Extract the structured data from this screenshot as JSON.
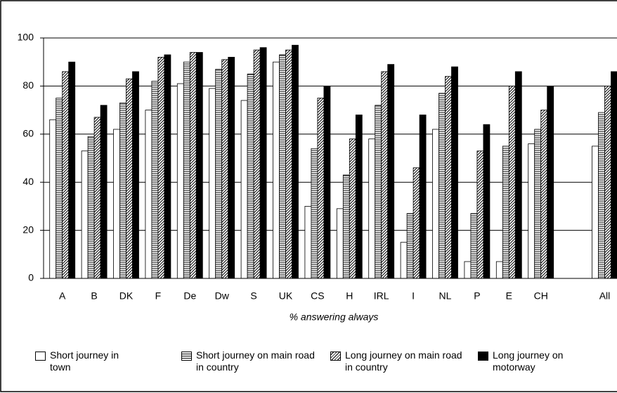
{
  "chart_data": {
    "type": "bar",
    "x_label": "% answering always",
    "categories": [
      "A",
      "B",
      "DK",
      "F",
      "De",
      "Dw",
      "S",
      "UK",
      "CS",
      "H",
      "IRL",
      "I",
      "NL",
      "P",
      "E",
      "CH",
      null,
      "All"
    ],
    "series": [
      {
        "name": "Short journey in town",
        "color": "#000000",
        "pattern": "none",
        "values": [
          66,
          53,
          62,
          70,
          81,
          79,
          74,
          90,
          30,
          29,
          58,
          15,
          62,
          7,
          7,
          56,
          null,
          55
        ]
      },
      {
        "name": "Short journey on main road in country",
        "color": "#000000",
        "pattern": "horizontal",
        "values": [
          75,
          59,
          73,
          82,
          90,
          87,
          85,
          93,
          54,
          43,
          72,
          27,
          77,
          27,
          55,
          62,
          null,
          69
        ]
      },
      {
        "name": "Long journey on main road in country",
        "color": "#000000",
        "pattern": "diagonal",
        "values": [
          86,
          67,
          83,
          92,
          94,
          91,
          95,
          95,
          75,
          58,
          86,
          46,
          84,
          53,
          80,
          70,
          null,
          80
        ]
      },
      {
        "name": "Long journey on motorway",
        "color": "#000000",
        "pattern": "solid",
        "values": [
          90,
          72,
          86,
          93,
          94,
          92,
          96,
          97,
          80,
          68,
          89,
          68,
          88,
          64,
          86,
          80,
          null,
          86
        ]
      }
    ],
    "ylim": [
      0,
      100
    ],
    "yticks": [
      0,
      20,
      40,
      60,
      80,
      100
    ],
    "grid": true
  }
}
